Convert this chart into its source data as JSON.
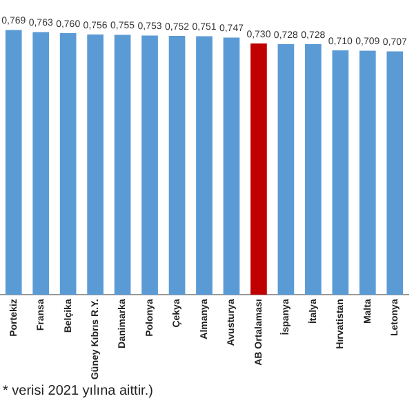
{
  "chart_data": {
    "type": "bar",
    "categories": [
      "Portekiz",
      "Fransa",
      "Belçika",
      "Güney Kıbrıs R.Y.",
      "Danimarka",
      "Polonya",
      "Çekya",
      "Almanya",
      "Avusturya",
      "AB Ortalaması",
      "İspanya",
      "İtalya",
      "Hırvatistan",
      "Malta",
      "Letonya"
    ],
    "values": [
      0.769,
      0.763,
      0.76,
      0.756,
      0.755,
      0.753,
      0.752,
      0.751,
      0.747,
      0.73,
      0.728,
      0.728,
      0.71,
      0.709,
      0.707
    ],
    "value_labels": [
      "0,769",
      "0,763",
      "0,760",
      "0,756",
      "0,755",
      "0,753",
      "0,752",
      "0,751",
      "0,747",
      "0,730",
      "0,728",
      "0,728",
      "0,710",
      "0,709",
      "0,707"
    ],
    "colors": [
      "#5b9bd5",
      "#5b9bd5",
      "#5b9bd5",
      "#5b9bd5",
      "#5b9bd5",
      "#5b9bd5",
      "#5b9bd5",
      "#5b9bd5",
      "#5b9bd5",
      "#c00000",
      "#5b9bd5",
      "#5b9bd5",
      "#5b9bd5",
      "#5b9bd5",
      "#5b9bd5"
    ],
    "annotations": [
      "* verisi 2021 yılına aittir.)"
    ]
  }
}
